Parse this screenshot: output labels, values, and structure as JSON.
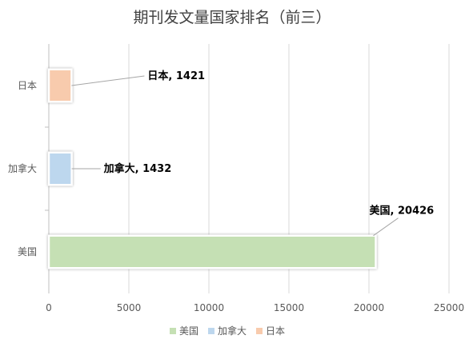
{
  "chart_data": {
    "type": "bar",
    "orientation": "horizontal",
    "title": "期刊发文量国家排名（前三）",
    "categories": [
      "日本",
      "加拿大",
      "美国"
    ],
    "values": [
      1421,
      1432,
      20426
    ],
    "data_labels": [
      "日本, 1421",
      "加拿大, 1432",
      "美国, 20426"
    ],
    "colors": [
      "#f8cbad",
      "#bdd7ee",
      "#c5e0b4"
    ],
    "xlim": [
      0,
      25000
    ],
    "x_ticks": [
      "0",
      "5000",
      "10000",
      "15000",
      "20000",
      "25000"
    ],
    "xlabel": "",
    "ylabel": "",
    "grid": true,
    "legend_position": "bottom",
    "legend": [
      {
        "label": "美国",
        "color": "#c5e0b4"
      },
      {
        "label": "加拿大",
        "color": "#bdd7ee"
      },
      {
        "label": "日本",
        "color": "#f8cbad"
      }
    ]
  }
}
